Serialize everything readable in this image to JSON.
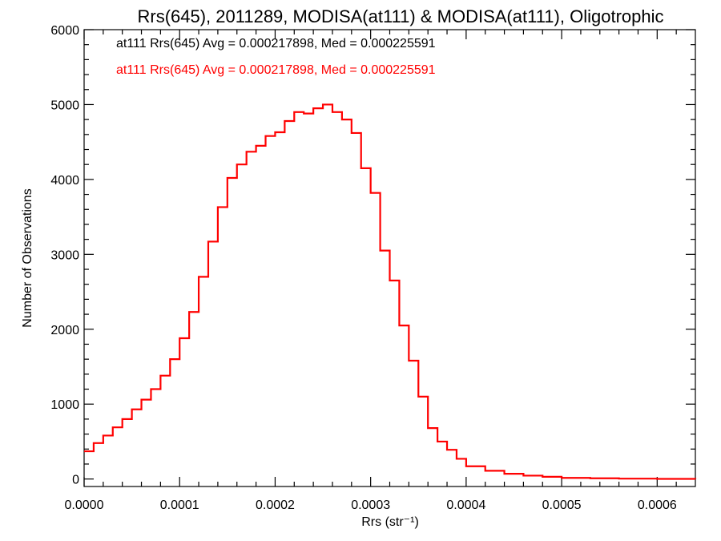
{
  "chart_data": {
    "type": "histogram",
    "title": "Rrs(645), 2011289, MODISA(at111) & MODISA(at111), Oligotrophic",
    "xlabel": "Rrs (str⁻¹)",
    "ylabel": "Number of Observations",
    "xlim": [
      0.0,
      0.00064
    ],
    "ylim": [
      -100,
      6000
    ],
    "x_ticks": [
      0.0,
      0.0001,
      0.0002,
      0.0003,
      0.0004,
      0.0005,
      0.0006
    ],
    "x_tick_labels": [
      "0.0000",
      "0.0001",
      "0.0002",
      "0.0003",
      "0.0004",
      "0.0005",
      "0.0006"
    ],
    "y_ticks": [
      0,
      1000,
      2000,
      3000,
      4000,
      5000,
      6000
    ],
    "y_tick_labels": [
      "0",
      "1000",
      "2000",
      "3000",
      "4000",
      "5000",
      "6000"
    ],
    "grid": false,
    "legend": [
      {
        "text": "at111 Rrs(645) Avg = 0.000217898, Med = 0.000225591",
        "color": "#000000"
      },
      {
        "text": "at111 Rrs(645) Avg = 0.000217898, Med = 0.000225591",
        "color": "#ff0000"
      }
    ],
    "series": [
      {
        "color": "#ff0000",
        "style": "step",
        "points": [
          [
            0.0,
            370
          ],
          [
            1e-05,
            480
          ],
          [
            2e-05,
            580
          ],
          [
            3e-05,
            690
          ],
          [
            4e-05,
            800
          ],
          [
            5e-05,
            930
          ],
          [
            6e-05,
            1060
          ],
          [
            7e-05,
            1200
          ],
          [
            8e-05,
            1380
          ],
          [
            9e-05,
            1600
          ],
          [
            0.0001,
            1880
          ],
          [
            0.00011,
            2230
          ],
          [
            0.00012,
            2700
          ],
          [
            0.00013,
            3170
          ],
          [
            0.00014,
            3630
          ],
          [
            0.00015,
            4020
          ],
          [
            0.00016,
            4200
          ],
          [
            0.00017,
            4370
          ],
          [
            0.00018,
            4450
          ],
          [
            0.00019,
            4580
          ],
          [
            0.0002,
            4630
          ],
          [
            0.00021,
            4780
          ],
          [
            0.00022,
            4900
          ],
          [
            0.00023,
            4880
          ],
          [
            0.00024,
            4950
          ],
          [
            0.00025,
            5000
          ],
          [
            0.00026,
            4900
          ],
          [
            0.00027,
            4800
          ],
          [
            0.00028,
            4620
          ],
          [
            0.00029,
            4150
          ],
          [
            0.0003,
            3820
          ],
          [
            0.00031,
            3050
          ],
          [
            0.00032,
            2650
          ],
          [
            0.00033,
            2050
          ],
          [
            0.00034,
            1580
          ],
          [
            0.00035,
            1100
          ],
          [
            0.00036,
            680
          ],
          [
            0.00037,
            500
          ],
          [
            0.00038,
            390
          ],
          [
            0.00039,
            270
          ],
          [
            0.0004,
            170
          ],
          [
            0.00042,
            110
          ],
          [
            0.00044,
            70
          ],
          [
            0.00046,
            45
          ],
          [
            0.00048,
            30
          ],
          [
            0.0005,
            15
          ],
          [
            0.00053,
            10
          ],
          [
            0.00056,
            5
          ],
          [
            0.0006,
            2
          ],
          [
            0.00064,
            0
          ]
        ]
      }
    ]
  }
}
